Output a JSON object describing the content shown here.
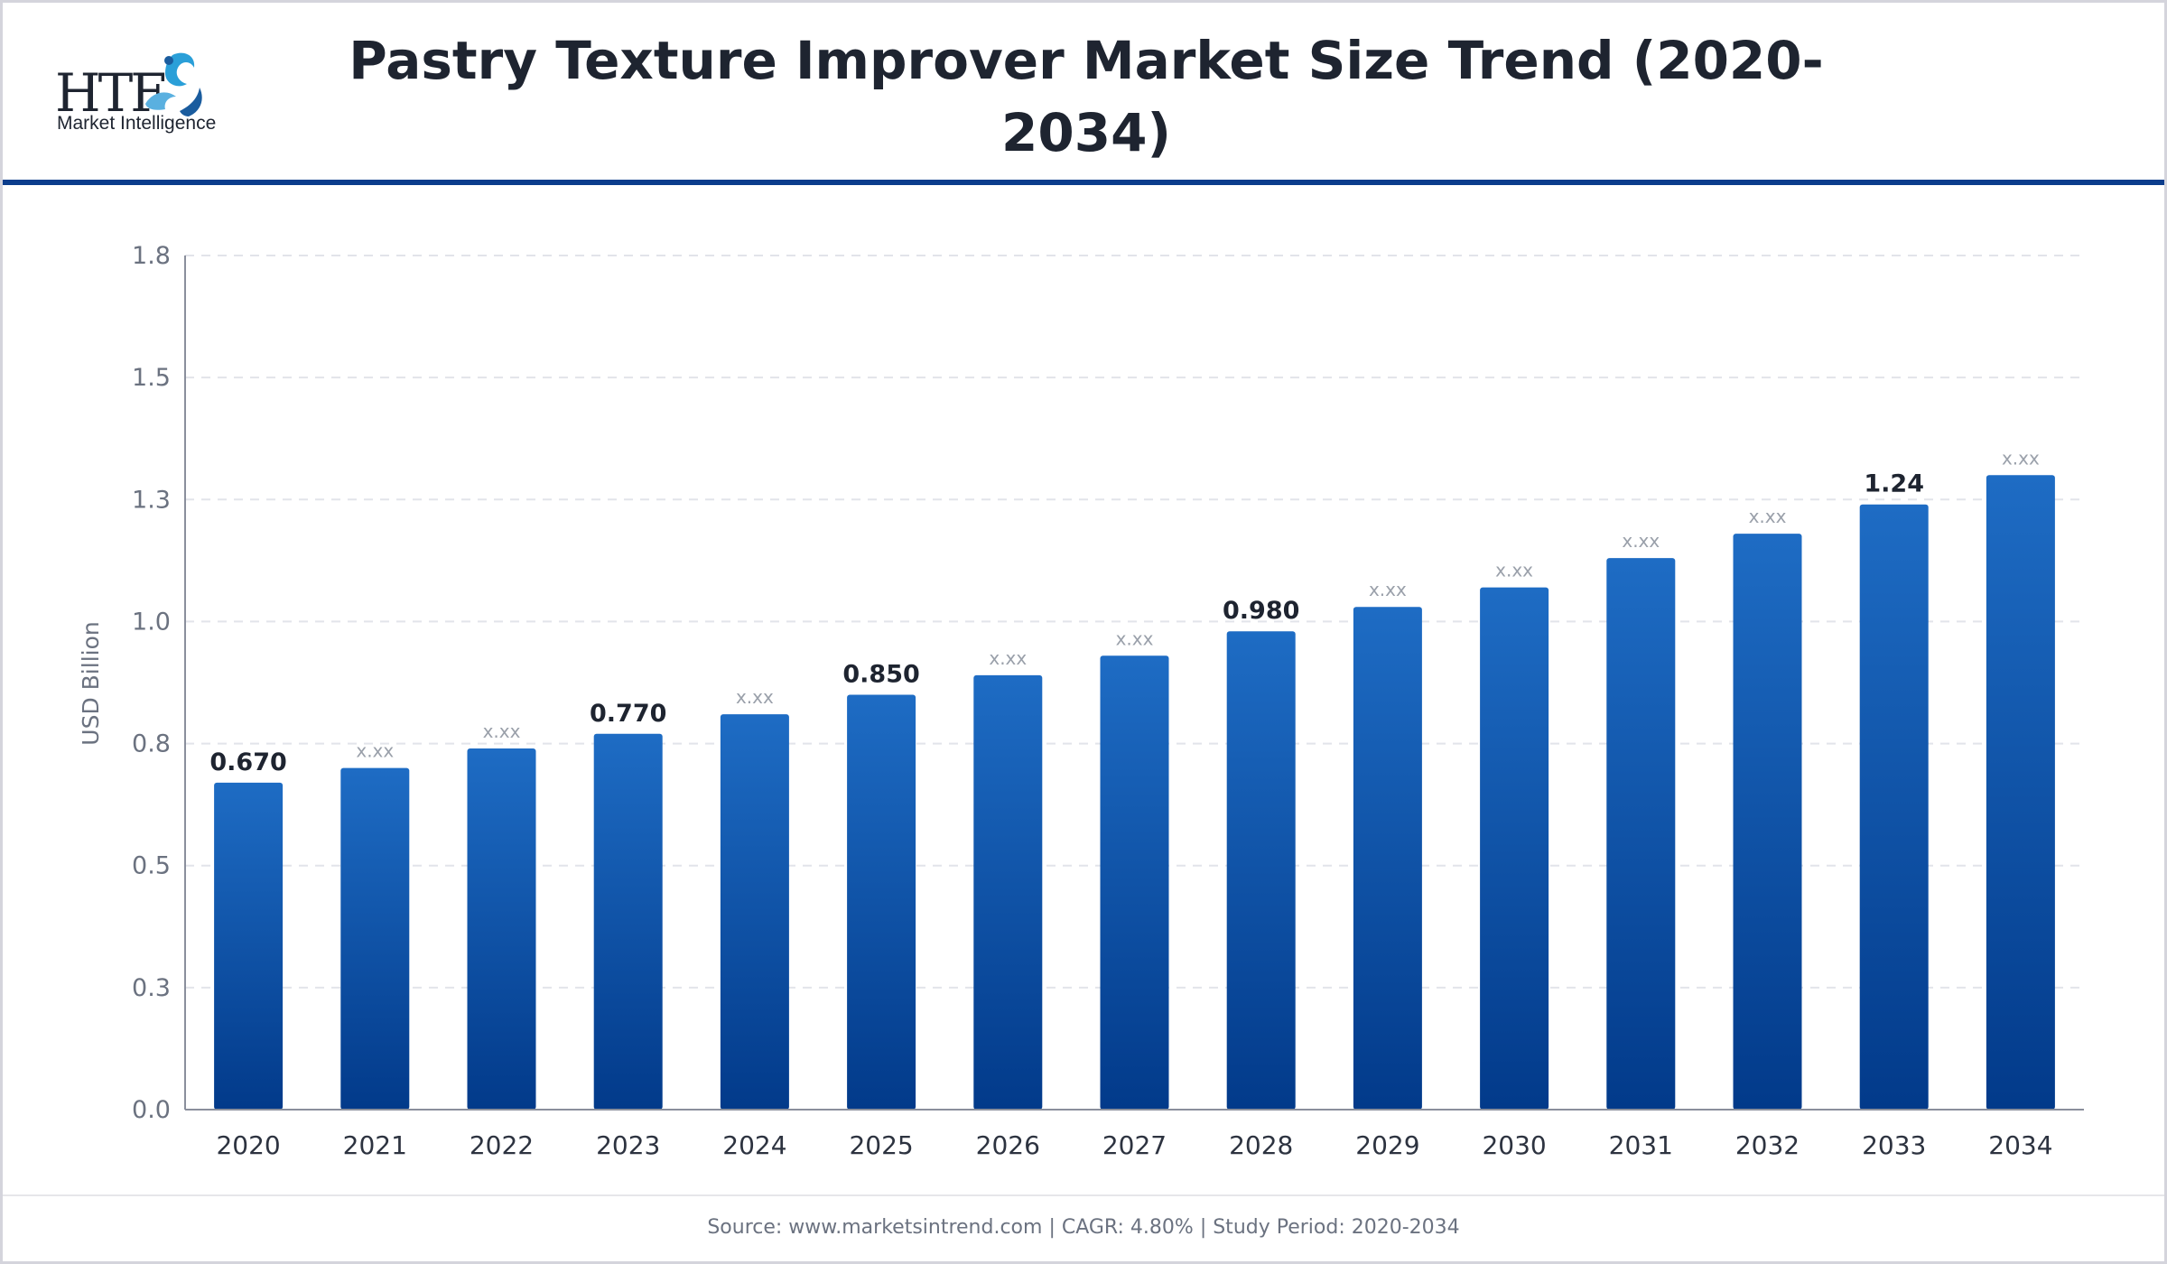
{
  "header": {
    "logo_mark": "HTF",
    "logo_sub": "Market Intelligence",
    "title": "Pastry Texture Improver Market Size Trend (2020-2034)"
  },
  "footer": {
    "source": "Source: www.marketsintrend.com  |  CAGR: 4.80%  |  Study Period: 2020-2034"
  },
  "colors": {
    "bar_top": "#1e6cc4",
    "bar_bottom": "#023a8a",
    "accent": "#0b3d8c"
  },
  "chart_data": {
    "type": "bar",
    "title": "Pastry Texture Improver Market Size Trend (2020-2034)",
    "ylabel": "USD Billion",
    "xlabel": "",
    "ylim": [
      0,
      1.75
    ],
    "yticks": [
      0.0,
      0.25,
      0.5,
      0.75,
      1.0,
      1.25,
      1.5,
      1.75
    ],
    "ytick_labels": [
      "0.0",
      "0.3",
      "0.5",
      "0.8",
      "1.0",
      "1.3",
      "1.5",
      "1.8"
    ],
    "grid": true,
    "categories": [
      "2020",
      "2021",
      "2022",
      "2023",
      "2024",
      "2025",
      "2026",
      "2027",
      "2028",
      "2029",
      "2030",
      "2031",
      "2032",
      "2033",
      "2034"
    ],
    "values": [
      0.67,
      0.7,
      0.74,
      0.77,
      0.81,
      0.85,
      0.89,
      0.93,
      0.98,
      1.03,
      1.07,
      1.13,
      1.18,
      1.24,
      1.3
    ],
    "value_labels": [
      "0.670",
      "x.xx",
      "x.xx",
      "0.770",
      "x.xx",
      "0.850",
      "x.xx",
      "x.xx",
      "0.980",
      "x.xx",
      "x.xx",
      "x.xx",
      "x.xx",
      "1.24",
      "x.xx"
    ]
  }
}
